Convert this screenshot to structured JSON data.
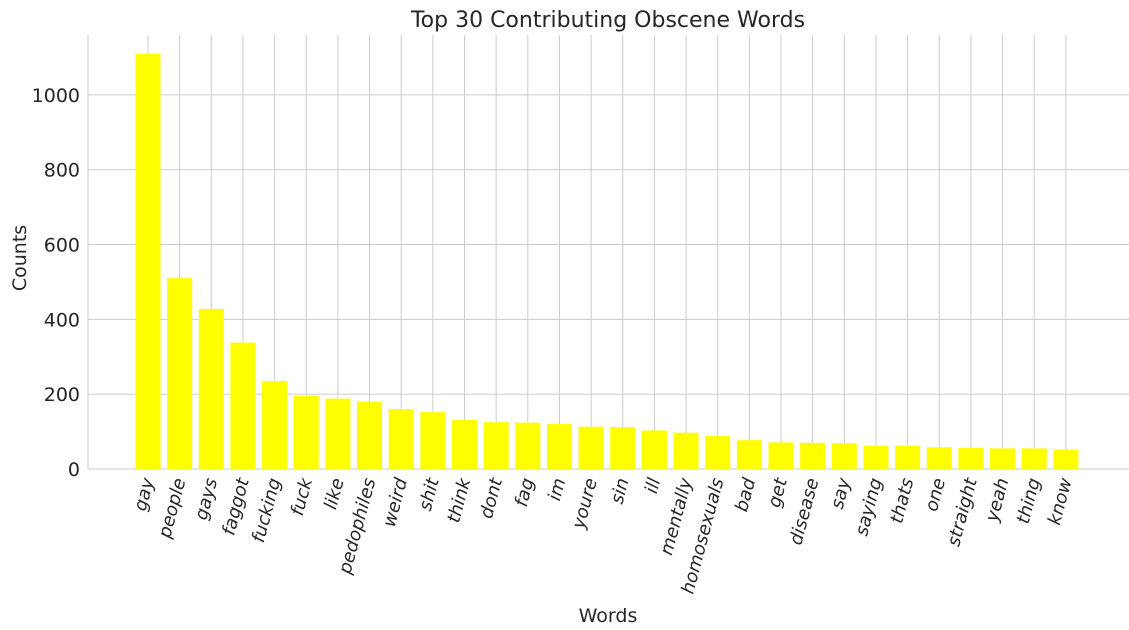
{
  "chart_data": {
    "type": "bar",
    "title": "Top 30 Contributing Obscene Words",
    "xlabel": "Words",
    "ylabel": "Counts",
    "ylim": [
      0,
      1160
    ],
    "yticks": [
      0,
      200,
      400,
      600,
      800,
      1000
    ],
    "grid": true,
    "bar_color": "#ffff00",
    "categories": [
      "gay",
      "people",
      "gays",
      "faggot",
      "fucking",
      "fuck",
      "like",
      "pedophiles",
      "weird",
      "shit",
      "think",
      "dont",
      "fag",
      "im",
      "youre",
      "sin",
      "ill",
      "mentally",
      "homosexuals",
      "bad",
      "get",
      "disease",
      "say",
      "saying",
      "thats",
      "one",
      "straight",
      "yeah",
      "thing",
      "know"
    ],
    "values": [
      1110,
      510,
      428,
      338,
      235,
      196,
      188,
      180,
      160,
      152,
      131,
      125,
      124,
      120,
      113,
      112,
      103,
      97,
      88,
      77,
      71,
      70,
      69,
      62,
      62,
      58,
      56,
      55,
      55,
      52
    ]
  }
}
